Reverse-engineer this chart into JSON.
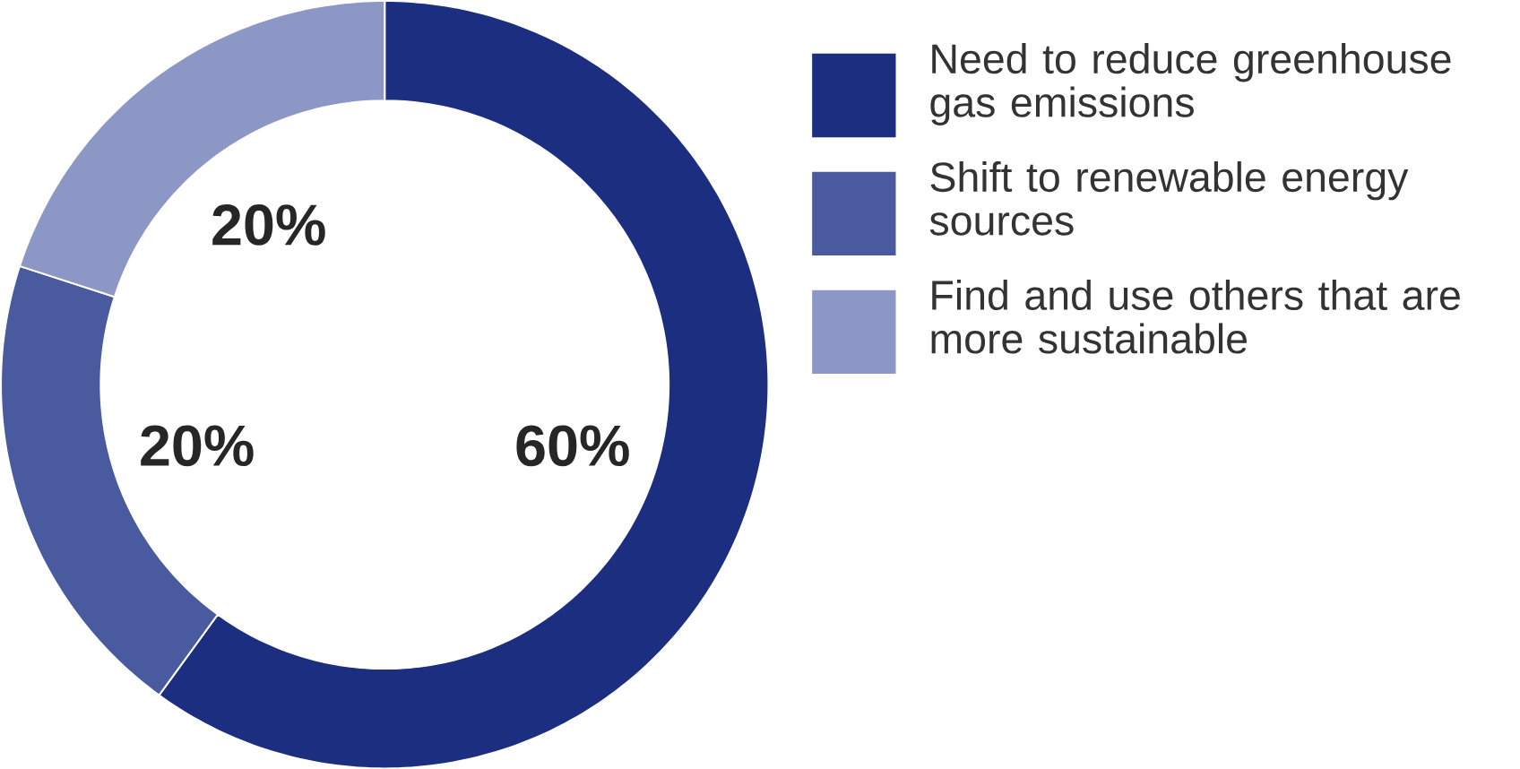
{
  "chart_data": {
    "type": "donut",
    "categories": [
      "Need to reduce greenhouse gas emissions",
      "Shift to renewable energy sources",
      "Find and use others that are more sustainable"
    ],
    "values": [
      60,
      20,
      20
    ],
    "colors": [
      "#1c2e80",
      "#4a5a9e",
      "#8d97c5"
    ],
    "value_labels": [
      "60%",
      "20%",
      "20%"
    ],
    "legend": "right"
  }
}
